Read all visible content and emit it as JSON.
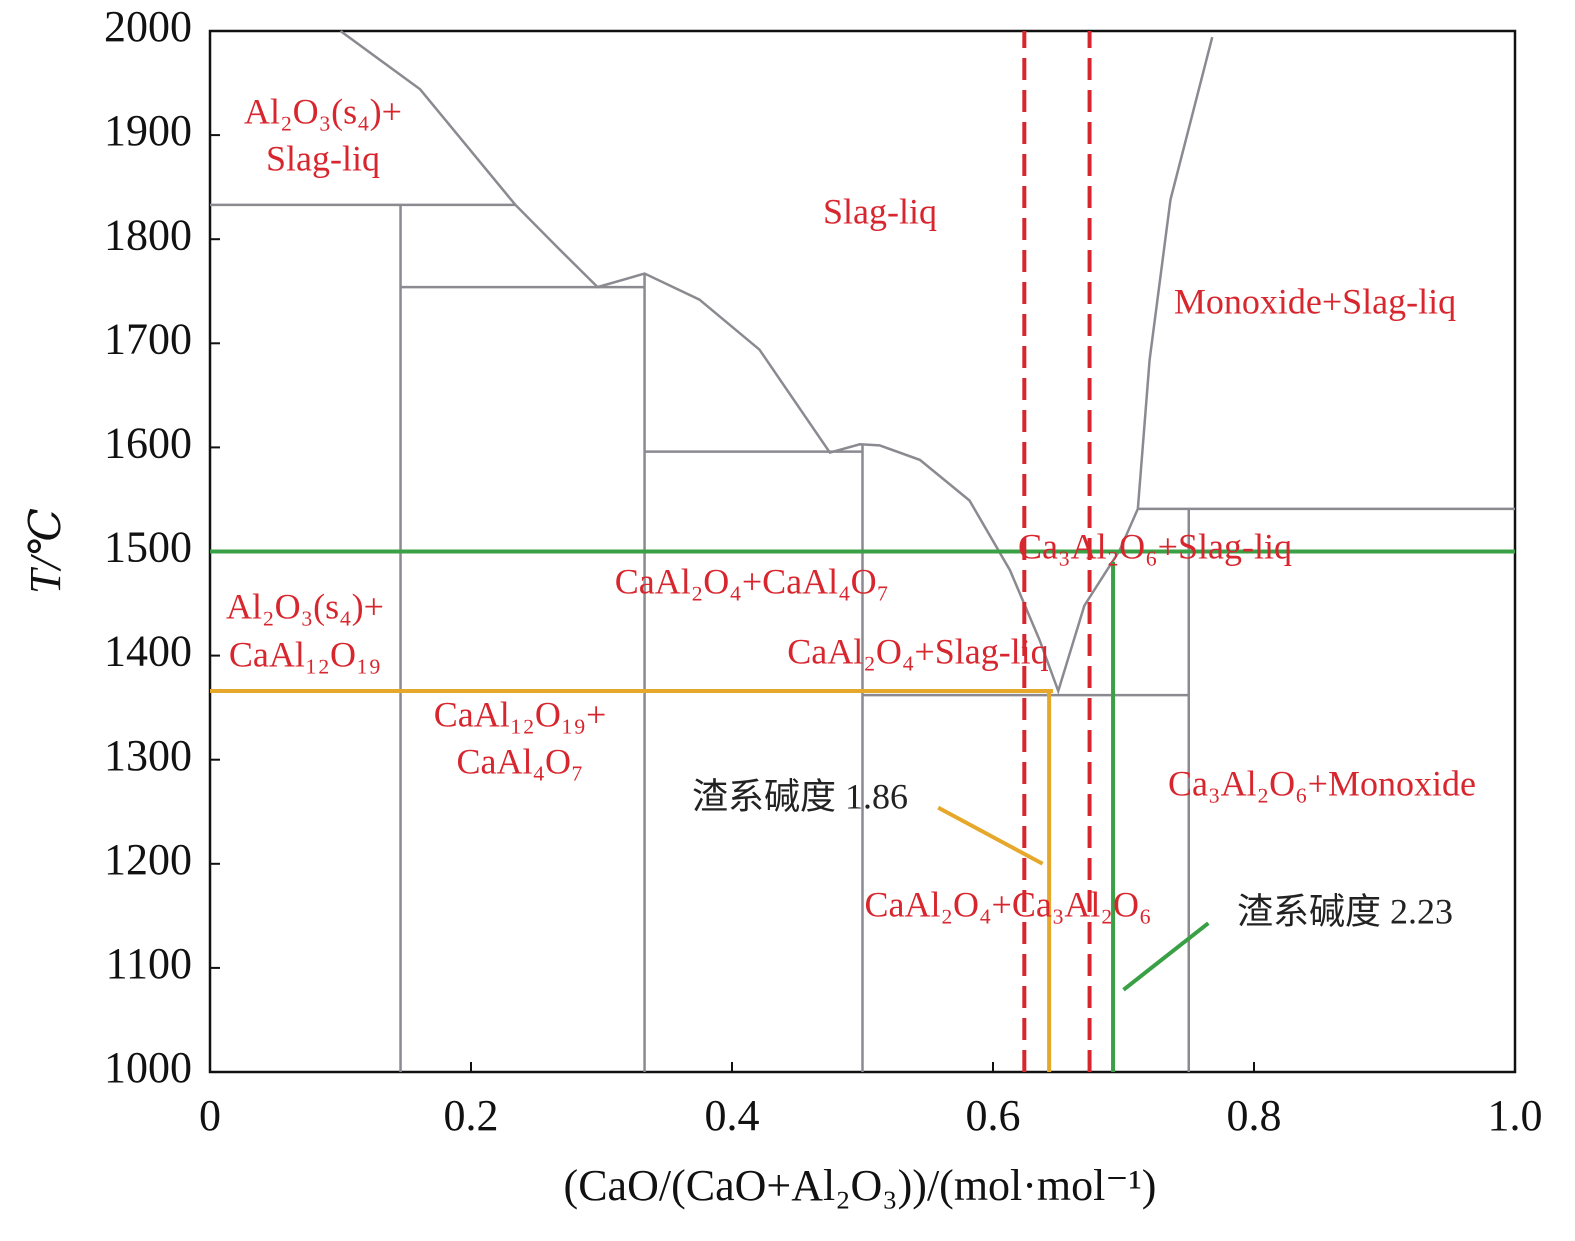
{
  "chart_data": {
    "type": "line",
    "xlabel": "(CaO/(CaO+Al₂O₃))/(mol·mol⁻¹)",
    "ylabel": "T/℃",
    "xlim": [
      0,
      1
    ],
    "xticks": [
      0,
      0.2,
      0.4,
      0.6,
      0.8,
      {
        "value": 1,
        "label": "1.0"
      }
    ],
    "ylim": [
      1000,
      2000
    ],
    "yticks": [
      1000,
      1100,
      1200,
      1300,
      1400,
      1500,
      1600,
      1700,
      1800,
      1900,
      2000
    ],
    "grid": false,
    "series": [
      {
        "color": "#8a8a90",
        "x": [
          0.1,
          0.161,
          0.234,
          0.268,
          0.297,
          0.333,
          0.375,
          0.421,
          0.475,
          0.498,
          0.513,
          0.544,
          0.582,
          0.613,
          0.636,
          0.65,
          0.67,
          0.697,
          0.711,
          0.72,
          0.736,
          0.768
        ],
        "values": [
          2000,
          1944,
          1833,
          1790,
          1754,
          1767,
          1742,
          1694,
          1595,
          1603,
          1602,
          1588,
          1549,
          1482,
          1414,
          1366,
          1448,
          1501,
          1541,
          1684,
          1838,
          1994
        ]
      },
      {
        "color": "#8a8a90",
        "x": [
          0,
          0.234
        ],
        "values": [
          1833,
          1833
        ]
      },
      {
        "color": "#8a8a90",
        "x": [
          0.146,
          0.146
        ],
        "values": [
          1000,
          1833
        ]
      },
      {
        "color": "#8a8a90",
        "x": [
          0.146,
          0.333
        ],
        "values": [
          1754,
          1754
        ]
      },
      {
        "color": "#8a8a90",
        "x": [
          0.333,
          0.333
        ],
        "values": [
          1000,
          1767
        ]
      },
      {
        "color": "#8a8a90",
        "x": [
          0.333,
          0.5
        ],
        "values": [
          1596,
          1596
        ]
      },
      {
        "color": "#8a8a90",
        "x": [
          0.5,
          0.5
        ],
        "values": [
          1000,
          1603
        ]
      },
      {
        "color": "#8a8a90",
        "x": [
          0.5,
          0.75
        ],
        "values": [
          1362,
          1362
        ]
      },
      {
        "color": "#8a8a90",
        "x": [
          0.75,
          0.75
        ],
        "values": [
          1000,
          1541
        ]
      },
      {
        "color": "#8a8a90",
        "x": [
          0.711,
          1
        ],
        "values": [
          1541,
          1541
        ]
      },
      {
        "color": "#3aa046",
        "x": [
          0,
          1
        ],
        "values": [
          1500,
          1500
        ]
      },
      {
        "color": "#3aa046",
        "x": [
          0.692,
          0.692
        ],
        "values": [
          1000,
          1490
        ]
      },
      {
        "color": "#e6a82a",
        "x": [
          0,
          0.646
        ],
        "values": [
          1366,
          1366
        ]
      },
      {
        "color": "#e6a82a",
        "x": [
          0.643,
          0.643
        ],
        "values": [
          1000,
          1366
        ]
      },
      {
        "color": "#d8262e",
        "dash": true,
        "x": [
          0.624,
          0.624
        ],
        "values": [
          1000,
          2000
        ]
      },
      {
        "color": "#d8262e",
        "dash": true,
        "x": [
          0.674,
          0.674
        ],
        "values": [
          1000,
          2000
        ]
      },
      {
        "color": "#e6a82a",
        "x": [
          0.558,
          0.638
        ],
        "values": [
          1254,
          1200
        ]
      },
      {
        "color": "#3aa046",
        "x": [
          0.765,
          0.7
        ],
        "values": [
          1143,
          1079
        ]
      }
    ],
    "annotations": [
      {
        "text": "Al₂O₃(s₄)+",
        "color": "#d8262e"
      },
      {
        "text": "Slag-liq",
        "color": "#d8262e"
      },
      {
        "text": "Slag-liq",
        "color": "#d8262e"
      },
      {
        "text": "Monoxide+Slag-liq",
        "color": "#d8262e"
      },
      {
        "text": "Ca₃Al₂O₆+Slag-liq",
        "color": "#d8262e"
      },
      {
        "text": "CaAl₂O₄+CaAl₄O₇",
        "color": "#d8262e"
      },
      {
        "text": "Al₂O₃(s₄)+",
        "color": "#d8262e"
      },
      {
        "text": "CaAl₁₂O₁₉",
        "color": "#d8262e"
      },
      {
        "text": "CaAl₂O₄+Slag-liq",
        "color": "#d8262e"
      },
      {
        "text": "CaAl₁₂O₁₉+",
        "color": "#d8262e"
      },
      {
        "text": "CaAl₄O₇",
        "color": "#d8262e"
      },
      {
        "text": "渣系碱度 1.86",
        "color": "#222222"
      },
      {
        "text": "Ca₃Al₂O₆+Monoxide",
        "color": "#d8262e"
      },
      {
        "text": "CaAl₂O₄+Ca₃Al₂O₆",
        "color": "#d8262e"
      },
      {
        "text": "渣系碱度 2.23",
        "color": "#222222"
      }
    ]
  }
}
